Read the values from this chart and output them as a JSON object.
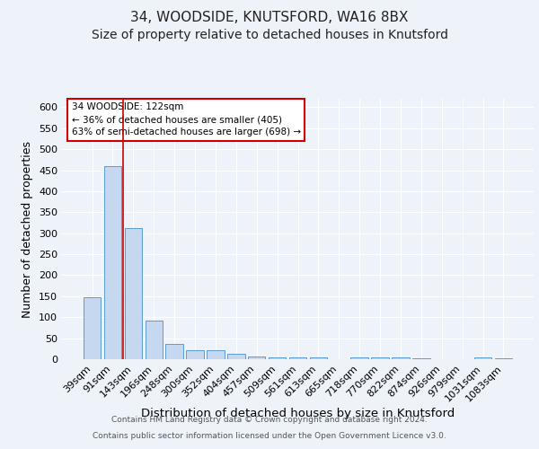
{
  "title1": "34, WOODSIDE, KNUTSFORD, WA16 8BX",
  "title2": "Size of property relative to detached houses in Knutsford",
  "xlabel": "Distribution of detached houses by size in Knutsford",
  "ylabel": "Number of detached properties",
  "categories": [
    "39sqm",
    "91sqm",
    "143sqm",
    "196sqm",
    "248sqm",
    "300sqm",
    "352sqm",
    "404sqm",
    "457sqm",
    "509sqm",
    "561sqm",
    "613sqm",
    "665sqm",
    "718sqm",
    "770sqm",
    "822sqm",
    "874sqm",
    "926sqm",
    "979sqm",
    "1031sqm",
    "1083sqm"
  ],
  "values": [
    148,
    460,
    312,
    93,
    37,
    21,
    21,
    13,
    7,
    4,
    5,
    5,
    0,
    5,
    5,
    5,
    2,
    1,
    0,
    5,
    3
  ],
  "bar_color": "#c5d8f0",
  "bar_edge_color": "#5b9bd5",
  "red_line_color": "#cc0000",
  "annotation_line1": "34 WOODSIDE: 122sqm",
  "annotation_line2": "← 36% of detached houses are smaller (405)",
  "annotation_line3": "63% of semi-detached houses are larger (698) →",
  "annotation_box_color": "#ffffff",
  "annotation_box_edge": "#cc0000",
  "ylim": [
    0,
    620
  ],
  "yticks": [
    0,
    50,
    100,
    150,
    200,
    250,
    300,
    350,
    400,
    450,
    500,
    550,
    600
  ],
  "footer1": "Contains HM Land Registry data © Crown copyright and database right 2024.",
  "footer2": "Contains public sector information licensed under the Open Government Licence v3.0.",
  "background_color": "#eef2f9",
  "grid_color": "#ffffff",
  "title1_fontsize": 11,
  "title2_fontsize": 10,
  "xlabel_fontsize": 9.5,
  "ylabel_fontsize": 9,
  "tick_fontsize": 8,
  "footer_fontsize": 6.5
}
